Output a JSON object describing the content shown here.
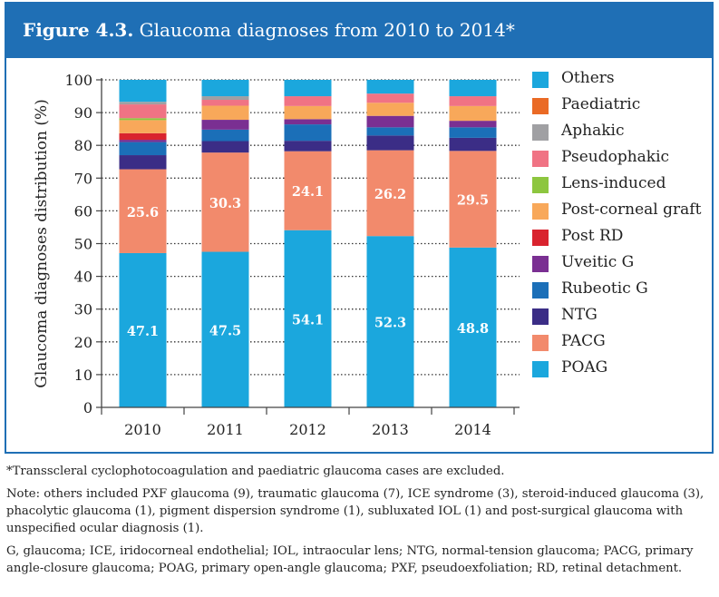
{
  "figure": {
    "number": "Figure 4.3.",
    "title": "Glaucoma diagnoses from 2010 to 2014*"
  },
  "chart_data": {
    "type": "bar",
    "stacked": true,
    "categories": [
      "2010",
      "2011",
      "2012",
      "2013",
      "2014"
    ],
    "ylabel": "Glaucoma diagnoses distribution (%)",
    "xlabel": "",
    "ylim": [
      0,
      100
    ],
    "yticks": [
      0,
      10,
      20,
      30,
      40,
      50,
      60,
      70,
      80,
      90,
      100
    ],
    "grid": "dotted horizontal",
    "legend_position": "right",
    "series": [
      {
        "name": "POAG",
        "color": "#1ba7dd",
        "values": [
          47.1,
          47.5,
          54.1,
          52.3,
          48.8
        ],
        "labels": [
          "47.1",
          "47.5",
          "54.1",
          "52.3",
          "48.8"
        ]
      },
      {
        "name": "PACG",
        "color": "#f28a6c",
        "values": [
          25.6,
          30.3,
          24.1,
          26.2,
          29.5
        ],
        "labels": [
          "25.6",
          "30.3",
          "24.1",
          "26.2",
          "29.5"
        ]
      },
      {
        "name": "NTG",
        "color": "#3b2d86",
        "values": [
          4.3,
          3.5,
          3.2,
          4.5,
          4.0
        ]
      },
      {
        "name": "Rubeotic G",
        "color": "#1b6fb8",
        "values": [
          4.0,
          3.5,
          5.0,
          2.5,
          3.2
        ]
      },
      {
        "name": "Uveitic G",
        "color": "#7a2f92",
        "values": [
          0.7,
          3.0,
          1.6,
          3.5,
          2.0
        ]
      },
      {
        "name": "Post RD",
        "color": "#d9232e",
        "values": [
          2.0,
          0.0,
          0.0,
          0.0,
          0.0
        ]
      },
      {
        "name": "Post-corneal graft",
        "color": "#f8a85a",
        "values": [
          4.0,
          4.3,
          4.0,
          4.0,
          4.5
        ]
      },
      {
        "name": "Lens-induced",
        "color": "#8dc63f",
        "values": [
          0.6,
          0.0,
          0.0,
          0.0,
          0.0
        ]
      },
      {
        "name": "Pseudophakic",
        "color": "#f07384",
        "values": [
          4.2,
          1.8,
          3.0,
          2.8,
          3.0
        ]
      },
      {
        "name": "Aphakic",
        "color": "#a0a0a3",
        "values": [
          0.8,
          1.1,
          0.0,
          0.0,
          0.0
        ]
      },
      {
        "name": "Paediatric",
        "color": "#ea6a25",
        "values": [
          0.0,
          0.0,
          0.0,
          0.0,
          0.0
        ]
      },
      {
        "name": "Others",
        "color": "#1ba7dd",
        "values": [
          6.7,
          5.0,
          5.0,
          4.2,
          5.0
        ]
      }
    ]
  },
  "legend": [
    {
      "label": "Others",
      "color": "#1ba7dd"
    },
    {
      "label": "Paediatric",
      "color": "#ea6a25"
    },
    {
      "label": "Aphakic",
      "color": "#a0a0a3"
    },
    {
      "label": "Pseudophakic",
      "color": "#f07384"
    },
    {
      "label": "Lens-induced",
      "color": "#8dc63f"
    },
    {
      "label": "Post-corneal graft",
      "color": "#f8a85a"
    },
    {
      "label": "Post RD",
      "color": "#d9232e"
    },
    {
      "label": "Uveitic G",
      "color": "#7a2f92"
    },
    {
      "label": "Rubeotic G",
      "color": "#1b6fb8"
    },
    {
      "label": "NTG",
      "color": "#3b2d86"
    },
    {
      "label": "PACG",
      "color": "#f28a6c"
    },
    {
      "label": "POAG",
      "color": "#1ba7dd"
    }
  ],
  "notes": {
    "footnote": "*Transscleral cyclophotocoagulation and paediatric glaucoma cases are excluded.",
    "note": "Note: others included PXF glaucoma (9), traumatic glaucoma (7), ICE syndrome (3), steroid-induced glaucoma (3), phacolytic glaucoma (1), pigment dispersion syndrome (1), subluxated IOL (1) and post-surgical glaucoma with unspecified ocular diagnosis (1).",
    "abbreviations": "G, glaucoma; ICE, iridocorneal endothelial; IOL, intraocular lens; NTG, normal-tension glaucoma; PACG, primary angle-closure glaucoma; POAG, primary open-angle glaucoma; PXF, pseudoexfoliation; RD, retinal detachment."
  },
  "colors": {
    "accent": "#1f6fb5",
    "bar_border_gap": "#ffffff"
  }
}
